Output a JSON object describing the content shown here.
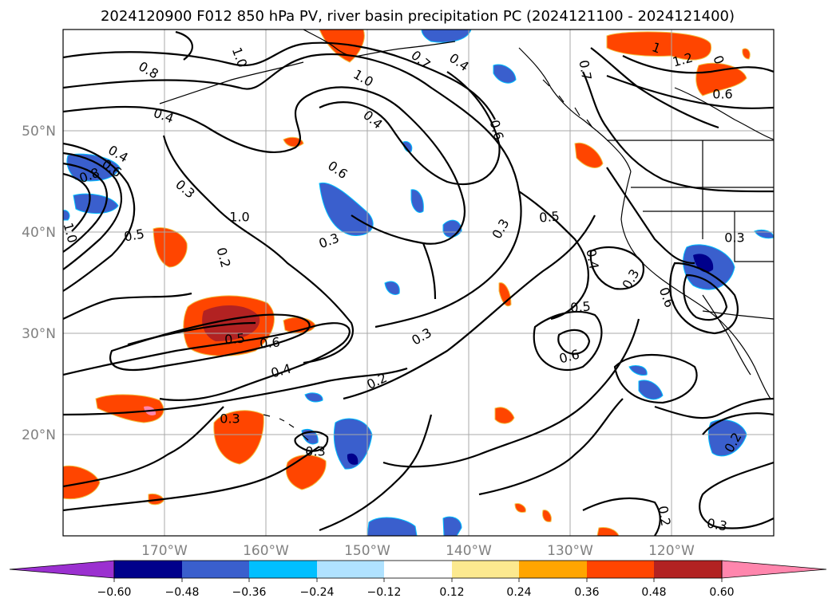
{
  "title": "2024120900 F012 850 hPa PV, river basin precipitation PC (2024121100 - 2024121400)",
  "longitude_labels": [
    "170°W",
    "160°W",
    "150°W",
    "140°W",
    "130°W",
    "120°W"
  ],
  "latitude_labels": [
    "50°N",
    "40°N",
    "30°N",
    "20°N"
  ],
  "colorbar": {
    "tick_labels": [
      "−0.60",
      "−0.48",
      "−0.36",
      "−0.24",
      "−0.12",
      "0.12",
      "0.24",
      "0.36",
      "0.48",
      "0.60"
    ],
    "colors": [
      "#9b30d0",
      "#00008b",
      "#3a5fcd",
      "#00bfff",
      "#b0e2ff",
      "#ffffff",
      "#fce98f",
      "#ffa500",
      "#ff4500",
      "#b22222",
      "#ff86ad"
    ]
  },
  "contour_labels": [
    {
      "text": "0.8"
    },
    {
      "text": "1.0"
    },
    {
      "text": "1.0"
    },
    {
      "text": "0.7"
    },
    {
      "text": "0.4"
    },
    {
      "text": "0.7"
    },
    {
      "text": "1"
    },
    {
      "text": "1.2"
    },
    {
      "text": "0"
    },
    {
      "text": "0.6"
    },
    {
      "text": "0.4"
    },
    {
      "text": "0.4"
    },
    {
      "text": "0.6"
    },
    {
      "text": "0.6"
    },
    {
      "text": "0.4"
    },
    {
      "text": "0.6"
    },
    {
      "text": "0.8"
    },
    {
      "text": "1.0"
    },
    {
      "text": "0.3"
    },
    {
      "text": "1.0"
    },
    {
      "text": "0.5"
    },
    {
      "text": "0.2"
    },
    {
      "text": "0.3"
    },
    {
      "text": "0.3"
    },
    {
      "text": "0.5"
    },
    {
      "text": "0.4"
    },
    {
      "text": "0.3"
    },
    {
      "text": "0.3"
    },
    {
      "text": "0.6"
    },
    {
      "text": "0.5"
    },
    {
      "text": "0.6"
    },
    {
      "text": "0.5"
    },
    {
      "text": "0.6"
    },
    {
      "text": "0.4"
    },
    {
      "text": "0.3"
    },
    {
      "text": "0.2"
    },
    {
      "text": "0.3"
    },
    {
      "text": "0.3"
    },
    {
      "text": "0.2"
    },
    {
      "text": "0.2"
    },
    {
      "text": "0.3"
    }
  ]
}
